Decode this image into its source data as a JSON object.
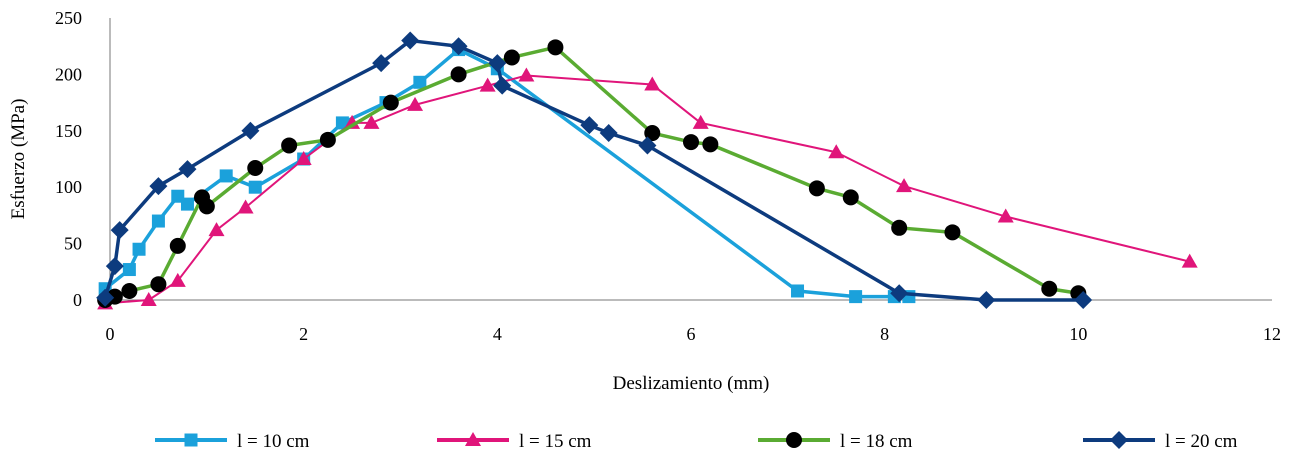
{
  "chart_data": {
    "type": "line",
    "xlabel": "Deslizamiento (mm)",
    "ylabel": "Esfuerzo (MPa)",
    "xlim": [
      0,
      12
    ],
    "ylim": [
      0,
      250
    ],
    "xticks": [
      0,
      2,
      4,
      6,
      8,
      10,
      12
    ],
    "yticks": [
      0,
      50,
      100,
      150,
      200,
      250
    ],
    "grid": false,
    "legend_position": "bottom",
    "series": [
      {
        "name": "l = 10 cm",
        "color": "#1ba1db",
        "marker": "square",
        "points": [
          [
            -0.05,
            10
          ],
          [
            0.2,
            27
          ],
          [
            0.3,
            45
          ],
          [
            0.5,
            70
          ],
          [
            0.7,
            92
          ],
          [
            0.8,
            85
          ],
          [
            1.2,
            110
          ],
          [
            1.5,
            100
          ],
          [
            2.0,
            125
          ],
          [
            2.4,
            157
          ],
          [
            2.85,
            175
          ],
          [
            3.2,
            193
          ],
          [
            3.6,
            222
          ],
          [
            4.0,
            205
          ],
          [
            7.1,
            8
          ],
          [
            7.7,
            3
          ],
          [
            8.1,
            3
          ],
          [
            8.25,
            3
          ]
        ]
      },
      {
        "name": "l = 15 cm",
        "color": "#e0157a",
        "marker": "triangle",
        "points": [
          [
            -0.05,
            -3
          ],
          [
            0.4,
            0
          ],
          [
            0.7,
            17
          ],
          [
            1.1,
            62
          ],
          [
            1.4,
            82
          ],
          [
            2.0,
            125
          ],
          [
            2.5,
            157
          ],
          [
            2.7,
            157
          ],
          [
            3.15,
            173
          ],
          [
            3.9,
            190
          ],
          [
            4.3,
            199
          ],
          [
            5.6,
            191
          ],
          [
            6.1,
            157
          ],
          [
            7.5,
            131
          ],
          [
            8.2,
            101
          ],
          [
            9.25,
            74
          ],
          [
            11.15,
            34
          ]
        ]
      },
      {
        "name": "l = 18 cm",
        "color": "#5aab32",
        "marker": "circle",
        "points": [
          [
            -0.05,
            0
          ],
          [
            0.05,
            3
          ],
          [
            0.2,
            8
          ],
          [
            0.5,
            14
          ],
          [
            0.7,
            48
          ],
          [
            0.95,
            91
          ],
          [
            1.0,
            83
          ],
          [
            1.5,
            117
          ],
          [
            1.85,
            137
          ],
          [
            2.25,
            142
          ],
          [
            2.9,
            175
          ],
          [
            3.6,
            200
          ],
          [
            4.15,
            215
          ],
          [
            4.6,
            224
          ],
          [
            5.6,
            148
          ],
          [
            6.0,
            140
          ],
          [
            6.2,
            138
          ],
          [
            7.3,
            99
          ],
          [
            7.65,
            91
          ],
          [
            8.15,
            64
          ],
          [
            8.7,
            60
          ],
          [
            9.7,
            10
          ],
          [
            10.0,
            6
          ]
        ]
      },
      {
        "name": "l = 20 cm",
        "color": "#0d3b7e",
        "marker": "diamond",
        "points": [
          [
            -0.05,
            2
          ],
          [
            0.05,
            30
          ],
          [
            0.1,
            62
          ],
          [
            0.5,
            101
          ],
          [
            0.8,
            116
          ],
          [
            1.45,
            150
          ],
          [
            2.8,
            210
          ],
          [
            3.1,
            230
          ],
          [
            3.6,
            225
          ],
          [
            4.0,
            210
          ],
          [
            4.05,
            190
          ],
          [
            4.95,
            155
          ],
          [
            5.15,
            148
          ],
          [
            5.55,
            137
          ],
          [
            8.15,
            6
          ],
          [
            9.05,
            0
          ],
          [
            10.05,
            0
          ]
        ]
      }
    ]
  }
}
